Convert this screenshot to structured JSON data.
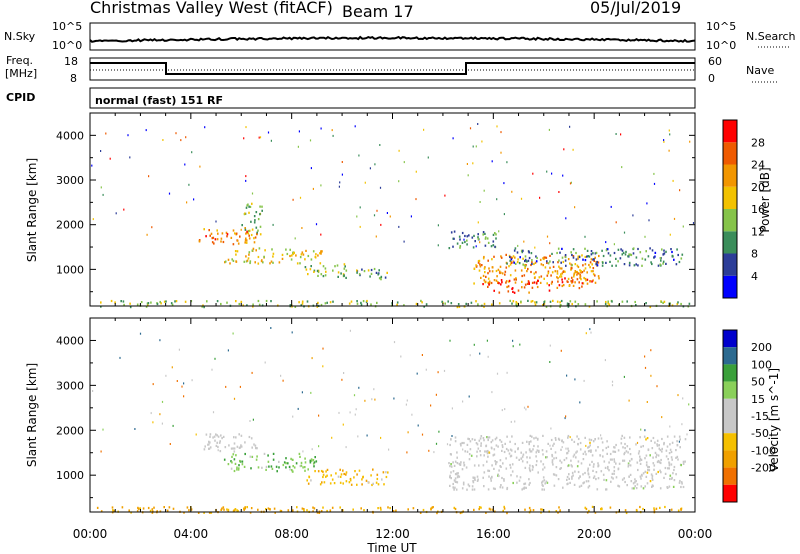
{
  "header": {
    "station": "Christmas Valley West (fitACF)",
    "beam": "Beam 17",
    "date": "05/Jul/2019"
  },
  "top_panels": {
    "nsky_label": "N.Sky",
    "nsky_ticks": [
      "10^5",
      "10^0"
    ],
    "nsearch_label": "N.Search",
    "nsearch_ticks": [
      "10^5",
      "10^0"
    ],
    "freq_label_1": "Freq.",
    "freq_label_2": "[MHz]",
    "freq_ticks": [
      "18",
      "8"
    ],
    "nave_label": "Nave",
    "nave_ticks": [
      "60",
      "0"
    ],
    "cpid_label": "CPID",
    "cpid_value": "normal (fast) 151 RF"
  },
  "colors": {
    "power_scale": [
      "#0000ff",
      "#2c3d98",
      "#3a8d5a",
      "#86c44a",
      "#f2c200",
      "#f29600",
      "#ef5a00",
      "#ff0000"
    ],
    "velocity_scale": [
      "#ff0000",
      "#f07000",
      "#f0a000",
      "#f5c000",
      "#c8c8c8",
      "#c8c8c8",
      "#8ad05a",
      "#3aa03a",
      "#2c6a90",
      "#0000cc"
    ],
    "ground_scatter": "#c8c8c8"
  },
  "chart_data": [
    {
      "type": "heatmap",
      "title": "Power",
      "xlabel": "Time UT",
      "ylabel": "Slant Range [km]",
      "x_ticks": [
        "00:00",
        "04:00",
        "08:00",
        "12:00",
        "16:00",
        "20:00",
        "00:00"
      ],
      "xlim": [
        0,
        24
      ],
      "ylim": [
        180,
        4500
      ],
      "y_ticks": [
        1000,
        2000,
        3000,
        4000
      ],
      "colorbar_label": "Power [dB]",
      "colorbar_ticks": [
        "28",
        "24",
        "20",
        "16",
        "12",
        "8",
        "4"
      ],
      "colorbar_range": [
        0,
        32
      ],
      "echo_regions": [
        {
          "t0": 4.3,
          "t1": 6.6,
          "r0": 1550,
          "r1": 1950,
          "power": 23
        },
        {
          "t0": 5.3,
          "t1": 9.2,
          "r0": 1150,
          "r1": 1500,
          "power": 18
        },
        {
          "t0": 8.5,
          "t1": 10.2,
          "r0": 850,
          "r1": 1150,
          "power": 14
        },
        {
          "t0": 10.0,
          "t1": 11.8,
          "r0": 800,
          "r1": 1050,
          "power": 12
        },
        {
          "t0": 6.0,
          "t1": 6.8,
          "r0": 1800,
          "r1": 2500,
          "power": 12
        },
        {
          "t0": 14.2,
          "t1": 16.2,
          "r0": 1500,
          "r1": 1900,
          "power": 10
        },
        {
          "t0": 15.2,
          "t1": 20.3,
          "r0": 700,
          "r1": 1350,
          "power": 22
        },
        {
          "t0": 15.5,
          "t1": 18.2,
          "r0": 500,
          "r1": 800,
          "power": 27
        },
        {
          "t0": 18.5,
          "t1": 20.0,
          "r0": 600,
          "r1": 1100,
          "power": 25
        },
        {
          "t0": 16.5,
          "t1": 23.5,
          "r0": 1100,
          "r1": 1500,
          "power": 9
        },
        {
          "t0": 0.2,
          "t1": 23.8,
          "r0": 180,
          "r1": 320,
          "power": 14
        }
      ]
    },
    {
      "type": "heatmap",
      "title": "Velocity",
      "xlabel": "Time UT",
      "ylabel": "Slant Range [km]",
      "x_ticks": [
        "00:00",
        "04:00",
        "08:00",
        "12:00",
        "16:00",
        "20:00",
        "00:00"
      ],
      "xlim": [
        0,
        24
      ],
      "ylim": [
        180,
        4500
      ],
      "y_ticks": [
        1000,
        2000,
        3000,
        4000
      ],
      "colorbar_label": "Velocity [m s^-1]",
      "colorbar_ticks": [
        "200",
        "100",
        "50",
        "15",
        "-15",
        "-50",
        "-100",
        "-200"
      ],
      "colorbar_range": [
        -250,
        250
      ],
      "echo_regions": [
        {
          "t0": 4.3,
          "t1": 6.6,
          "r0": 1550,
          "r1": 1950,
          "velocity": 0,
          "ground": true
        },
        {
          "t0": 5.3,
          "t1": 9.0,
          "r0": 1100,
          "r1": 1500,
          "velocity": 40
        },
        {
          "t0": 8.5,
          "t1": 11.8,
          "r0": 800,
          "r1": 1150,
          "velocity": -40
        },
        {
          "t0": 14.2,
          "t1": 23.6,
          "r0": 700,
          "r1": 1900,
          "velocity": 0,
          "ground": true
        },
        {
          "t0": 0.2,
          "t1": 23.8,
          "r0": 180,
          "r1": 320,
          "velocity": -60
        }
      ]
    }
  ]
}
